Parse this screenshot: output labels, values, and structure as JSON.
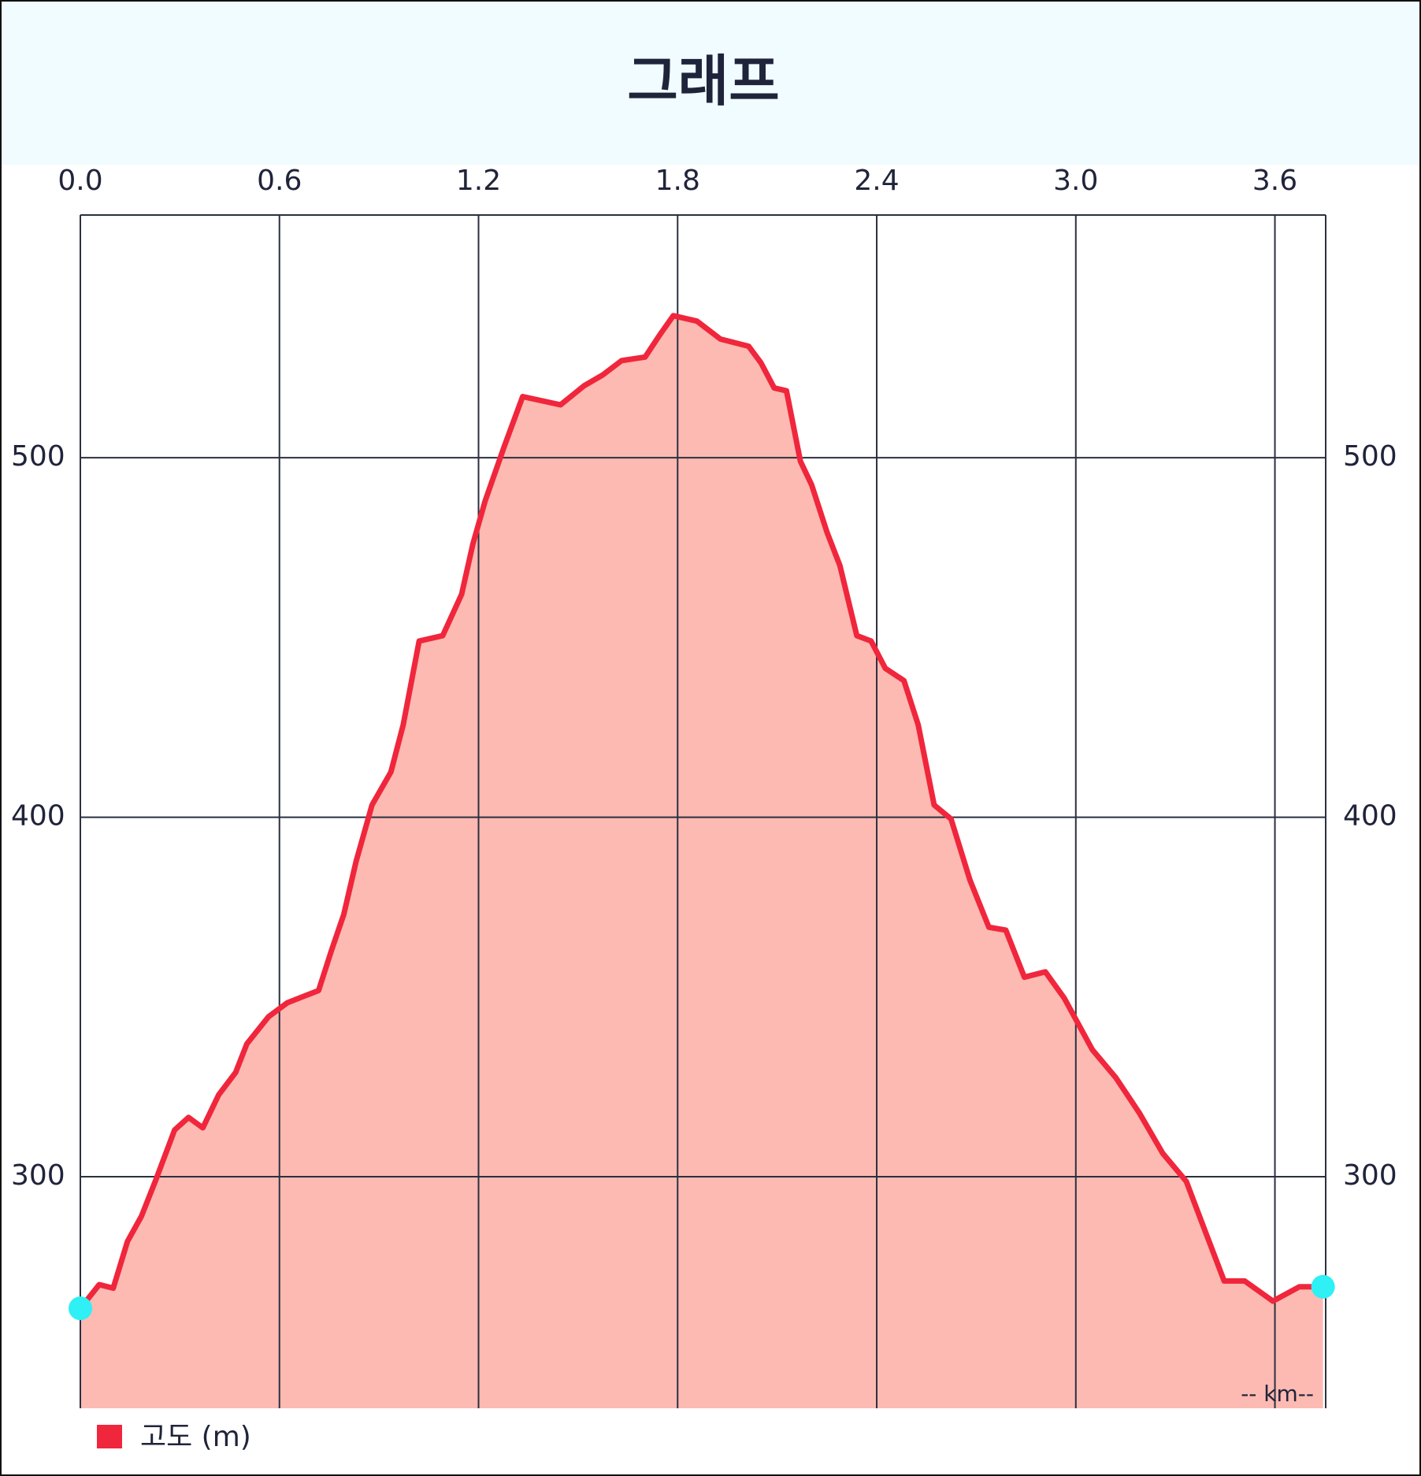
{
  "chart_data": {
    "type": "area",
    "title": "그래프",
    "x_label": "-- km--",
    "x": [
      0,
      0.057,
      0.099,
      0.142,
      0.184,
      0.227,
      0.284,
      0.326,
      0.369,
      0.417,
      0.468,
      0.502,
      0.567,
      0.624,
      0.718,
      0.757,
      0.794,
      0.831,
      0.879,
      0.936,
      0.973,
      1.021,
      1.092,
      1.149,
      1.183,
      1.22,
      1.277,
      1.333,
      1.447,
      1.518,
      1.574,
      1.631,
      1.702,
      1.745,
      1.787,
      1.858,
      1.929,
      2.014,
      2.051,
      2.091,
      2.128,
      2.17,
      2.204,
      2.25,
      2.289,
      2.34,
      2.383,
      2.426,
      2.482,
      2.525,
      2.573,
      2.624,
      2.681,
      2.738,
      2.789,
      2.845,
      2.908,
      2.965,
      3.05,
      3.121,
      3.191,
      3.262,
      3.333,
      3.376,
      3.447,
      3.509,
      3.594,
      3.674,
      3.745
    ],
    "series": [
      {
        "name": "고도 (m)",
        "color": "#f0263c",
        "fill": "#fcbab2",
        "values": [
          263.4,
          270,
          269,
          282,
          289,
          299,
          313,
          316.5,
          313.6,
          322.8,
          329,
          337,
          344.5,
          348.4,
          351.8,
          363,
          373,
          387.7,
          403.4,
          412.6,
          425.7,
          449,
          450.5,
          462,
          476,
          488,
          503,
          517,
          514.7,
          520,
          523,
          527,
          528,
          534,
          539.5,
          538,
          533,
          531,
          526.4,
          519.4,
          518.6,
          499,
          492.4,
          479.3,
          470,
          450.5,
          449,
          441.4,
          438,
          425.7,
          403.4,
          399.5,
          382.5,
          369.4,
          368.6,
          355.5,
          357,
          349.7,
          335.3,
          327.5,
          317.8,
          306.5,
          298.7,
          288.2,
          271,
          271,
          265.4,
          269.4,
          269.4
        ]
      }
    ],
    "endpoint_color": "#2ef0f5",
    "xlim": [
      0,
      3.753
    ],
    "ylim": [
      235.6,
      567.5
    ],
    "xticks": [
      {
        "value": 0,
        "label": "0.0"
      },
      0.6,
      1.2,
      1.8,
      2.4,
      {
        "value": 3,
        "label": "3.0"
      },
      3.6
    ],
    "yticks": [
      300,
      400,
      500
    ],
    "grid": true
  }
}
